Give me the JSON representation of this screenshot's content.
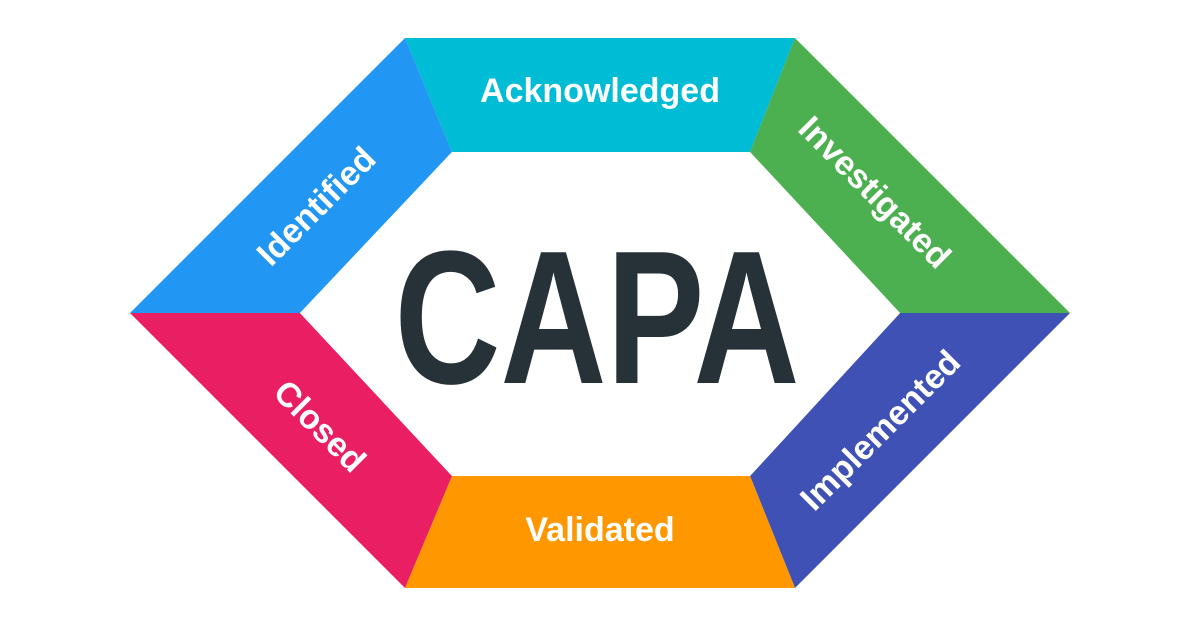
{
  "diagram": {
    "center_title": "CAPA",
    "segments": [
      {
        "key": "acknowledged",
        "label": "Acknowledged",
        "color": "#00BCD4"
      },
      {
        "key": "investigated",
        "label": "Investigated",
        "color": "#4CAF50"
      },
      {
        "key": "implemented",
        "label": "Implemented",
        "color": "#3F51B5"
      },
      {
        "key": "validated",
        "label": "Validated",
        "color": "#FF9800"
      },
      {
        "key": "closed",
        "label": "Closed",
        "color": "#E91E63"
      },
      {
        "key": "identified",
        "label": "Identified",
        "color": "#2196F3"
      }
    ],
    "center_color": "#263238"
  }
}
